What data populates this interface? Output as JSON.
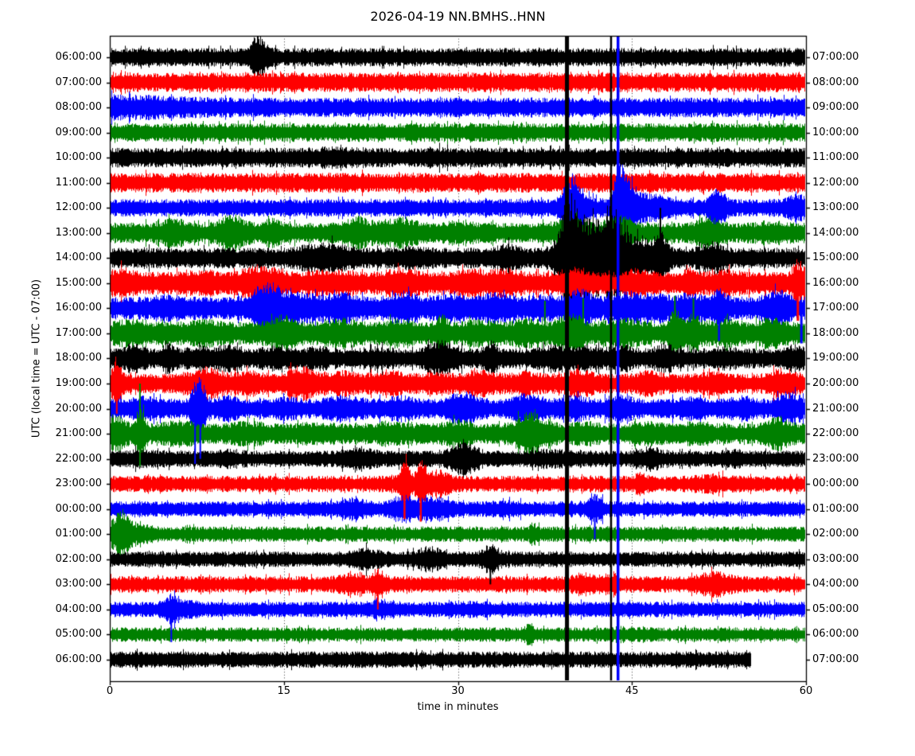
{
  "palette": {
    "black": "#000000",
    "red": "#ff0000",
    "blue": "#0000ff",
    "green": "#008000",
    "frame": "#000000"
  },
  "chart_data": {
    "type": "helicorder",
    "title": "2026-04-19 NN.BMHS..HNN",
    "xlabel": "time in minutes",
    "ylabel": "UTC (local time = UTC - 07:00)",
    "x_ticks": [
      "0",
      "15",
      "30",
      "45",
      "60"
    ],
    "x_tick_values": [
      0,
      15,
      30,
      45,
      60
    ],
    "x_range": [
      0,
      60
    ],
    "minutes_per_row": 60,
    "grid": {
      "x_minutes": [
        15,
        30,
        45
      ],
      "style": "dotted"
    },
    "utc_offset_hours": -7,
    "rows": [
      {
        "left": "06:00:00",
        "right": "07:00:00",
        "color": "black",
        "amp": 9,
        "end": 60,
        "bursts": [
          [
            12.8,
            2.6,
            0.5
          ]
        ]
      },
      {
        "left": "07:00:00",
        "right": "08:00:00",
        "color": "red",
        "amp": 9.5,
        "end": 60,
        "bursts": []
      },
      {
        "left": "08:00:00",
        "right": "09:00:00",
        "color": "blue",
        "amp": 9.5,
        "end": 60,
        "bursts": [
          [
            0,
            1.35,
            5
          ]
        ]
      },
      {
        "left": "09:00:00",
        "right": "10:00:00",
        "color": "green",
        "amp": 9,
        "end": 60,
        "bursts": []
      },
      {
        "left": "10:00:00",
        "right": "11:00:00",
        "color": "black",
        "amp": 9.5,
        "end": 60,
        "bursts": [
          [
            19,
            1.2,
            1.5
          ],
          [
            28,
            1.15,
            1
          ]
        ]
      },
      {
        "left": "11:00:00",
        "right": "12:00:00",
        "color": "red",
        "amp": 9.5,
        "end": 60,
        "bursts": []
      },
      {
        "left": "12:00:00",
        "right": "13:00:00",
        "color": "blue",
        "amp": 8.5,
        "end": 60,
        "bursts": [
          [
            39.7,
            3.2,
            0.5
          ],
          [
            40.3,
            2,
            0.8
          ],
          [
            43.8,
            5,
            0.3
          ],
          [
            44.4,
            3,
            0.7
          ],
          [
            45.5,
            1.8,
            1.2
          ],
          [
            47.5,
            1.4,
            0.5
          ],
          [
            52.4,
            2.3,
            0.5
          ],
          [
            59.2,
            1.9,
            0.6
          ]
        ]
      },
      {
        "left": "13:00:00",
        "right": "14:00:00",
        "color": "green",
        "amp": 10,
        "end": 60,
        "bursts": [
          [
            5.5,
            1.5,
            0.8
          ],
          [
            10.5,
            2.0,
            0.8
          ],
          [
            14,
            1.5,
            0.6
          ],
          [
            21.3,
            1.7,
            0.8
          ],
          [
            24.8,
            1.6,
            1.2
          ],
          [
            30,
            1.3,
            1
          ],
          [
            39.6,
            1.9,
            0.8
          ],
          [
            44,
            1.8,
            0.8
          ],
          [
            51.5,
            1.7,
            0.8
          ],
          [
            57,
            1.3,
            0.8
          ]
        ]
      },
      {
        "left": "14:00:00",
        "right": "15:00:00",
        "color": "black",
        "amp": 10,
        "end": 60,
        "bursts": [
          [
            18.5,
            1.7,
            1.5
          ],
          [
            26,
            1.3,
            1
          ],
          [
            34.3,
            1.5,
            0.7
          ],
          [
            39.6,
            4.8,
            0.7
          ],
          [
            40.6,
            3.2,
            1.2
          ],
          [
            42.5,
            2.6,
            1
          ],
          [
            43.3,
            3.4,
            0.6
          ],
          [
            44.5,
            2.2,
            1.2
          ],
          [
            46.5,
            1.6,
            1
          ],
          [
            47.5,
            2.6,
            0.4
          ],
          [
            51.8,
            1.7,
            0.8
          ]
        ]
      },
      {
        "left": "15:00:00",
        "right": "16:00:00",
        "color": "red",
        "amp": 11,
        "end": 60,
        "bursts": [
          [
            1,
            1.5,
            0.8
          ],
          [
            8,
            1.3,
            1
          ],
          [
            13,
            1.7,
            1.2
          ],
          [
            19,
            1.4,
            1
          ],
          [
            25,
            1.5,
            1
          ],
          [
            31,
            1.3,
            1
          ],
          [
            34,
            1.4,
            1
          ],
          [
            40,
            1.5,
            1
          ],
          [
            45.5,
            1.4,
            0.8
          ],
          [
            50,
            1.8,
            0.4
          ],
          [
            53,
            1.3,
            1
          ],
          [
            59.3,
            2.2,
            0.4
          ]
        ]
      },
      {
        "left": "16:00:00",
        "right": "17:00:00",
        "color": "blue",
        "amp": 11,
        "end": 60,
        "bursts": [
          [
            5,
            1.3,
            1
          ],
          [
            13.5,
            2.3,
            1.0
          ],
          [
            16,
            1.5,
            1.5
          ],
          [
            20,
            1.5,
            1
          ],
          [
            25.5,
            1.6,
            0.8
          ],
          [
            29,
            1.4,
            1
          ],
          [
            33,
            1.5,
            1
          ],
          [
            37,
            1.3,
            1
          ],
          [
            40.5,
            1.8,
            0.8
          ],
          [
            44.5,
            1.5,
            1
          ],
          [
            47,
            1.4,
            1
          ],
          [
            50,
            1.5,
            0.8
          ],
          [
            52.5,
            1.8,
            0.5
          ],
          [
            57.5,
            1.8,
            0.8
          ]
        ]
      },
      {
        "left": "17:00:00",
        "right": "18:00:00",
        "color": "green",
        "amp": 11,
        "end": 60,
        "bursts": [
          [
            2,
            1.4,
            1
          ],
          [
            8,
            1.3,
            1
          ],
          [
            15,
            1.7,
            1
          ],
          [
            20,
            1.4,
            1
          ],
          [
            25,
            1.4,
            1
          ],
          [
            28.6,
            1.8,
            0.4
          ],
          [
            32,
            1.3,
            1
          ],
          [
            36,
            1.4,
            1
          ],
          [
            39.6,
            1.9,
            0.8
          ],
          [
            44,
            1.5,
            1
          ],
          [
            48.7,
            2.2,
            0.4
          ],
          [
            50.3,
            2.0,
            0.4
          ],
          [
            53,
            1.4,
            1
          ],
          [
            57,
            1.5,
            0.8
          ]
        ]
      },
      {
        "left": "18:00:00",
        "right": "19:00:00",
        "color": "black",
        "amp": 9.5,
        "end": 60,
        "bursts": [
          [
            2,
            1.6,
            0.7
          ],
          [
            5,
            1.7,
            0.4
          ],
          [
            7.5,
            1.4,
            0.8
          ],
          [
            10,
            1.5,
            0.8
          ],
          [
            14,
            1.3,
            1
          ],
          [
            18,
            1.3,
            1
          ],
          [
            23,
            1.3,
            1
          ],
          [
            28.5,
            1.9,
            1.0
          ],
          [
            32.8,
            2.0,
            0.4
          ],
          [
            38,
            1.5,
            0.8
          ],
          [
            41,
            1.4,
            1
          ],
          [
            44,
            1.5,
            0.8
          ],
          [
            47.8,
            1.7,
            0.6
          ],
          [
            53,
            1.3,
            1
          ],
          [
            59,
            1.5,
            0.6
          ]
        ]
      },
      {
        "left": "19:00:00",
        "right": "20:00:00",
        "color": "red",
        "amp": 9.5,
        "end": 60,
        "bursts": [
          [
            0.6,
            2.6,
            0.3
          ],
          [
            8.3,
            1.9,
            1.0
          ],
          [
            12,
            1.4,
            1
          ],
          [
            16.3,
            1.9,
            0.9
          ],
          [
            20,
            1.4,
            1
          ],
          [
            24,
            1.5,
            1
          ],
          [
            28,
            1.3,
            1
          ],
          [
            32,
            1.5,
            1
          ],
          [
            36,
            1.3,
            1
          ],
          [
            40.5,
            1.6,
            0.9
          ],
          [
            46.5,
            1.5,
            0.8
          ],
          [
            52,
            1.3,
            1
          ],
          [
            58,
            1.7,
            0.8
          ]
        ]
      },
      {
        "left": "20:00:00",
        "right": "21:00:00",
        "color": "blue",
        "amp": 9.5,
        "end": 60,
        "bursts": [
          [
            3,
            1.4,
            1
          ],
          [
            7.4,
            2.8,
            0.3
          ],
          [
            7.9,
            2.8,
            0.3
          ],
          [
            10,
            1.5,
            0.8
          ],
          [
            15,
            1.3,
            1
          ],
          [
            20,
            1.5,
            1
          ],
          [
            25,
            1.4,
            1
          ],
          [
            30.5,
            1.9,
            0.9
          ],
          [
            36,
            1.7,
            0.9
          ],
          [
            40,
            1.4,
            1
          ],
          [
            44,
            1.5,
            0.8
          ],
          [
            50,
            1.3,
            1
          ],
          [
            54.5,
            1.4,
            0.8
          ],
          [
            58.5,
            1.9,
            0.7
          ]
        ]
      },
      {
        "left": "21:00:00",
        "right": "22:00:00",
        "color": "green",
        "amp": 10,
        "end": 60,
        "bursts": [
          [
            0.5,
            2.0,
            0.6
          ],
          [
            2.6,
            2.8,
            0.3
          ],
          [
            6,
            1.4,
            1
          ],
          [
            12,
            1.3,
            1
          ],
          [
            18,
            1.3,
            1
          ],
          [
            24,
            1.3,
            1
          ],
          [
            30,
            1.4,
            1
          ],
          [
            36.3,
            2.2,
            1.0
          ],
          [
            41,
            1.3,
            1
          ],
          [
            46,
            1.3,
            1
          ],
          [
            50.5,
            1.4,
            0.8
          ],
          [
            57.5,
            1.7,
            0.8
          ]
        ]
      },
      {
        "left": "22:00:00",
        "right": "23:00:00",
        "color": "black",
        "amp": 8,
        "end": 60,
        "bursts": [
          [
            3,
            1.3,
            1
          ],
          [
            10,
            1.25,
            1
          ],
          [
            21.5,
            1.6,
            0.9
          ],
          [
            30.5,
            2.1,
            0.9
          ],
          [
            38,
            1.3,
            1
          ],
          [
            46.5,
            1.6,
            0.7
          ],
          [
            54,
            1.2,
            1
          ]
        ]
      },
      {
        "left": "23:00:00",
        "right": "00:00:00",
        "color": "red",
        "amp": 8,
        "end": 60,
        "bursts": [
          [
            25.4,
            2.8,
            0.35
          ],
          [
            26.8,
            2.8,
            0.35
          ],
          [
            28.2,
            1.8,
            0.8
          ],
          [
            45.8,
            1.6,
            0.4
          ],
          [
            52,
            1.3,
            1
          ]
        ]
      },
      {
        "left": "00:00:00",
        "right": "01:00:00",
        "color": "blue",
        "amp": 7.5,
        "end": 60,
        "bursts": [
          [
            21,
            1.6,
            0.8
          ],
          [
            25.3,
            1.9,
            0.9
          ],
          [
            28,
            1.7,
            0.9
          ],
          [
            34,
            1.2,
            1
          ],
          [
            41.8,
            2.0,
            0.5
          ]
        ]
      },
      {
        "left": "01:00:00",
        "right": "02:00:00",
        "color": "green",
        "amp": 7.5,
        "end": 60,
        "bursts": [
          [
            1,
            2.8,
            0.5
          ],
          [
            1.4,
            1.6,
            1.5
          ],
          [
            36.5,
            1.5,
            0.3
          ]
        ]
      },
      {
        "left": "02:00:00",
        "right": "03:00:00",
        "color": "black",
        "amp": 7.5,
        "end": 60,
        "bursts": [
          [
            22,
            1.6,
            0.9
          ],
          [
            27.5,
            1.8,
            0.8
          ],
          [
            32.8,
            2.1,
            0.5
          ]
        ]
      },
      {
        "left": "03:00:00",
        "right": "04:00:00",
        "color": "red",
        "amp": 8,
        "end": 60,
        "bursts": [
          [
            20.8,
            1.5,
            0.8
          ],
          [
            23.1,
            2.1,
            0.4
          ],
          [
            40.8,
            1.5,
            0.7
          ],
          [
            43.2,
            1.5,
            0.6
          ],
          [
            52,
            1.7,
            1.0
          ]
        ]
      },
      {
        "left": "04:00:00",
        "right": "05:00:00",
        "color": "blue",
        "amp": 7.5,
        "end": 60,
        "bursts": [
          [
            5.3,
            2.0,
            0.4
          ],
          [
            6.2,
            1.4,
            1
          ],
          [
            23.5,
            1.4,
            0.8
          ],
          [
            31,
            1.2,
            1
          ]
        ]
      },
      {
        "left": "05:00:00",
        "right": "06:00:00",
        "color": "green",
        "amp": 7,
        "end": 60,
        "bursts": [
          [
            36.2,
            1.7,
            0.3
          ],
          [
            44,
            1.2,
            1
          ]
        ]
      },
      {
        "left": "06:00:00",
        "right": "07:00:00",
        "color": "black",
        "amp": 8,
        "end": 55.3,
        "bursts": []
      }
    ],
    "spikes": [
      {
        "t": 39.4,
        "color": "black",
        "w": 5,
        "full": true
      },
      {
        "t": 43.2,
        "color": "black",
        "w": 2.5,
        "full": true
      },
      {
        "t": 43.8,
        "color": "blue",
        "w": 3.5,
        "full": true
      },
      {
        "t": 47.45,
        "color": "black",
        "w": 2,
        "from": 6,
        "to": 8.6
      },
      {
        "t": 2.6,
        "color": "green",
        "w": 2,
        "from": 13.0,
        "to": 16.3
      },
      {
        "t": 7.35,
        "color": "blue",
        "w": 2,
        "from": 13.2,
        "to": 16.2
      },
      {
        "t": 7.8,
        "color": "blue",
        "w": 2,
        "from": 13.3,
        "to": 16.0
      },
      {
        "t": 0.6,
        "color": "red",
        "w": 2,
        "from": 12.3,
        "to": 14.2
      },
      {
        "t": 25.4,
        "color": "red",
        "w": 2.5,
        "from": 16.2,
        "to": 18.4
      },
      {
        "t": 26.8,
        "color": "red",
        "w": 2.5,
        "from": 16.3,
        "to": 18.5
      },
      {
        "t": 37.5,
        "color": "green",
        "w": 2,
        "from": 9.7,
        "to": 11.3
      },
      {
        "t": 40.8,
        "color": "green",
        "w": 2,
        "from": 9.6,
        "to": 11.4
      },
      {
        "t": 48.7,
        "color": "green",
        "w": 2,
        "from": 9.5,
        "to": 11.6
      },
      {
        "t": 50.3,
        "color": "green",
        "w": 2,
        "from": 9.6,
        "to": 11.5
      },
      {
        "t": 52.5,
        "color": "blue",
        "w": 2.5,
        "from": 9.3,
        "to": 11.3
      },
      {
        "t": 41.8,
        "color": "blue",
        "w": 2,
        "from": 17.4,
        "to": 19.2
      },
      {
        "t": 32.8,
        "color": "black",
        "w": 2,
        "from": 19.5,
        "to": 21.0
      },
      {
        "t": 23.1,
        "color": "red",
        "w": 2,
        "from": 20.6,
        "to": 22.0
      },
      {
        "t": 59.3,
        "color": "red",
        "w": 3,
        "from": 9.3,
        "to": 10.5
      },
      {
        "t": 59.6,
        "color": "blue",
        "w": 3,
        "from": 10.2,
        "to": 11.4
      },
      {
        "t": 5.3,
        "color": "blue",
        "w": 2,
        "from": 21.6,
        "to": 23.3
      }
    ]
  }
}
